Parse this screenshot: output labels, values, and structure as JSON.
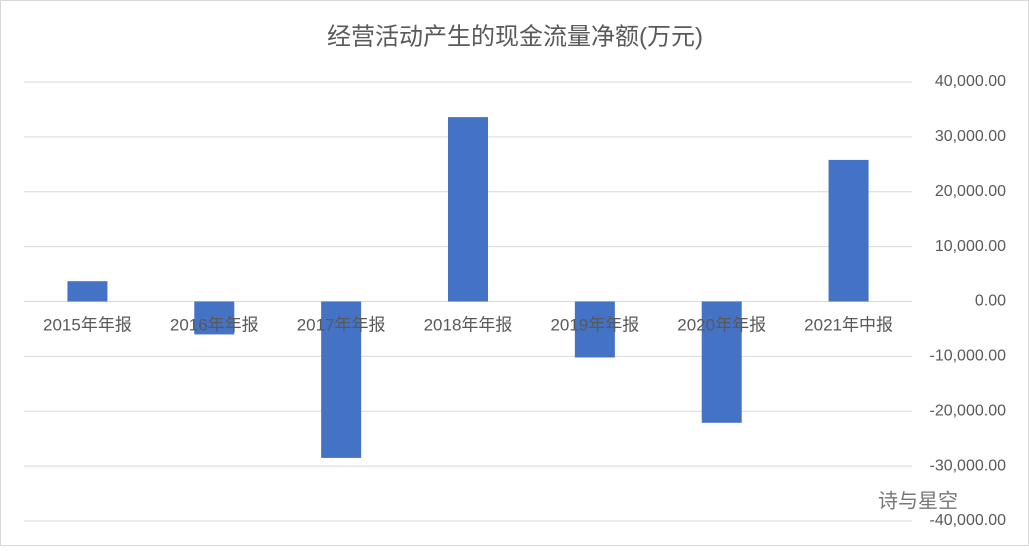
{
  "chart_data": {
    "type": "bar",
    "title": "经营活动产生的现金流量净额(万元)",
    "categories": [
      "2015年年报",
      "2016年年报",
      "2017年年报",
      "2018年年报",
      "2019年年报",
      "2020年年报",
      "2021年中报"
    ],
    "values": [
      3700,
      -6000,
      -28500,
      33600,
      -10200,
      -22100,
      25800
    ],
    "color": "#4472c4",
    "ylim": [
      -40000,
      40000
    ],
    "yticks": [
      {
        "value": -40000,
        "label": "-40,000.00"
      },
      {
        "value": -30000,
        "label": "-30,000.00"
      },
      {
        "value": -20000,
        "label": "-20,000.00"
      },
      {
        "value": -10000,
        "label": "-10,000.00"
      },
      {
        "value": 0,
        "label": "0.00"
      },
      {
        "value": 10000,
        "label": "10,000.00"
      },
      {
        "value": 20000,
        "label": "20,000.00"
      },
      {
        "value": 30000,
        "label": "30,000.00"
      },
      {
        "value": 40000,
        "label": "40,000.00"
      }
    ],
    "grid": true,
    "annotation": "诗与星空"
  }
}
